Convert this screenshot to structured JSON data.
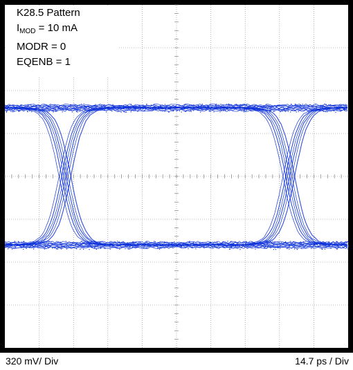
{
  "chart_data": {
    "type": "eye-diagram",
    "annotations": {
      "pattern": "K28.5 Pattern",
      "imod_symbol": "I",
      "imod_subscript": "MOD",
      "imod_value": " = 10 mA",
      "modr": "MODR = 0",
      "eqenb": "EQENB = 1"
    },
    "vertical_scale": "320 mV/ Div",
    "horizontal_scale": "14.7 ps / Div",
    "divisions": {
      "x": 10,
      "y": 8
    },
    "crossings_div": [
      1.76,
      8.28
    ],
    "trace_color": "#0b2fd8",
    "grid_color": "#7f7f7f",
    "frame_color": "#000000"
  }
}
